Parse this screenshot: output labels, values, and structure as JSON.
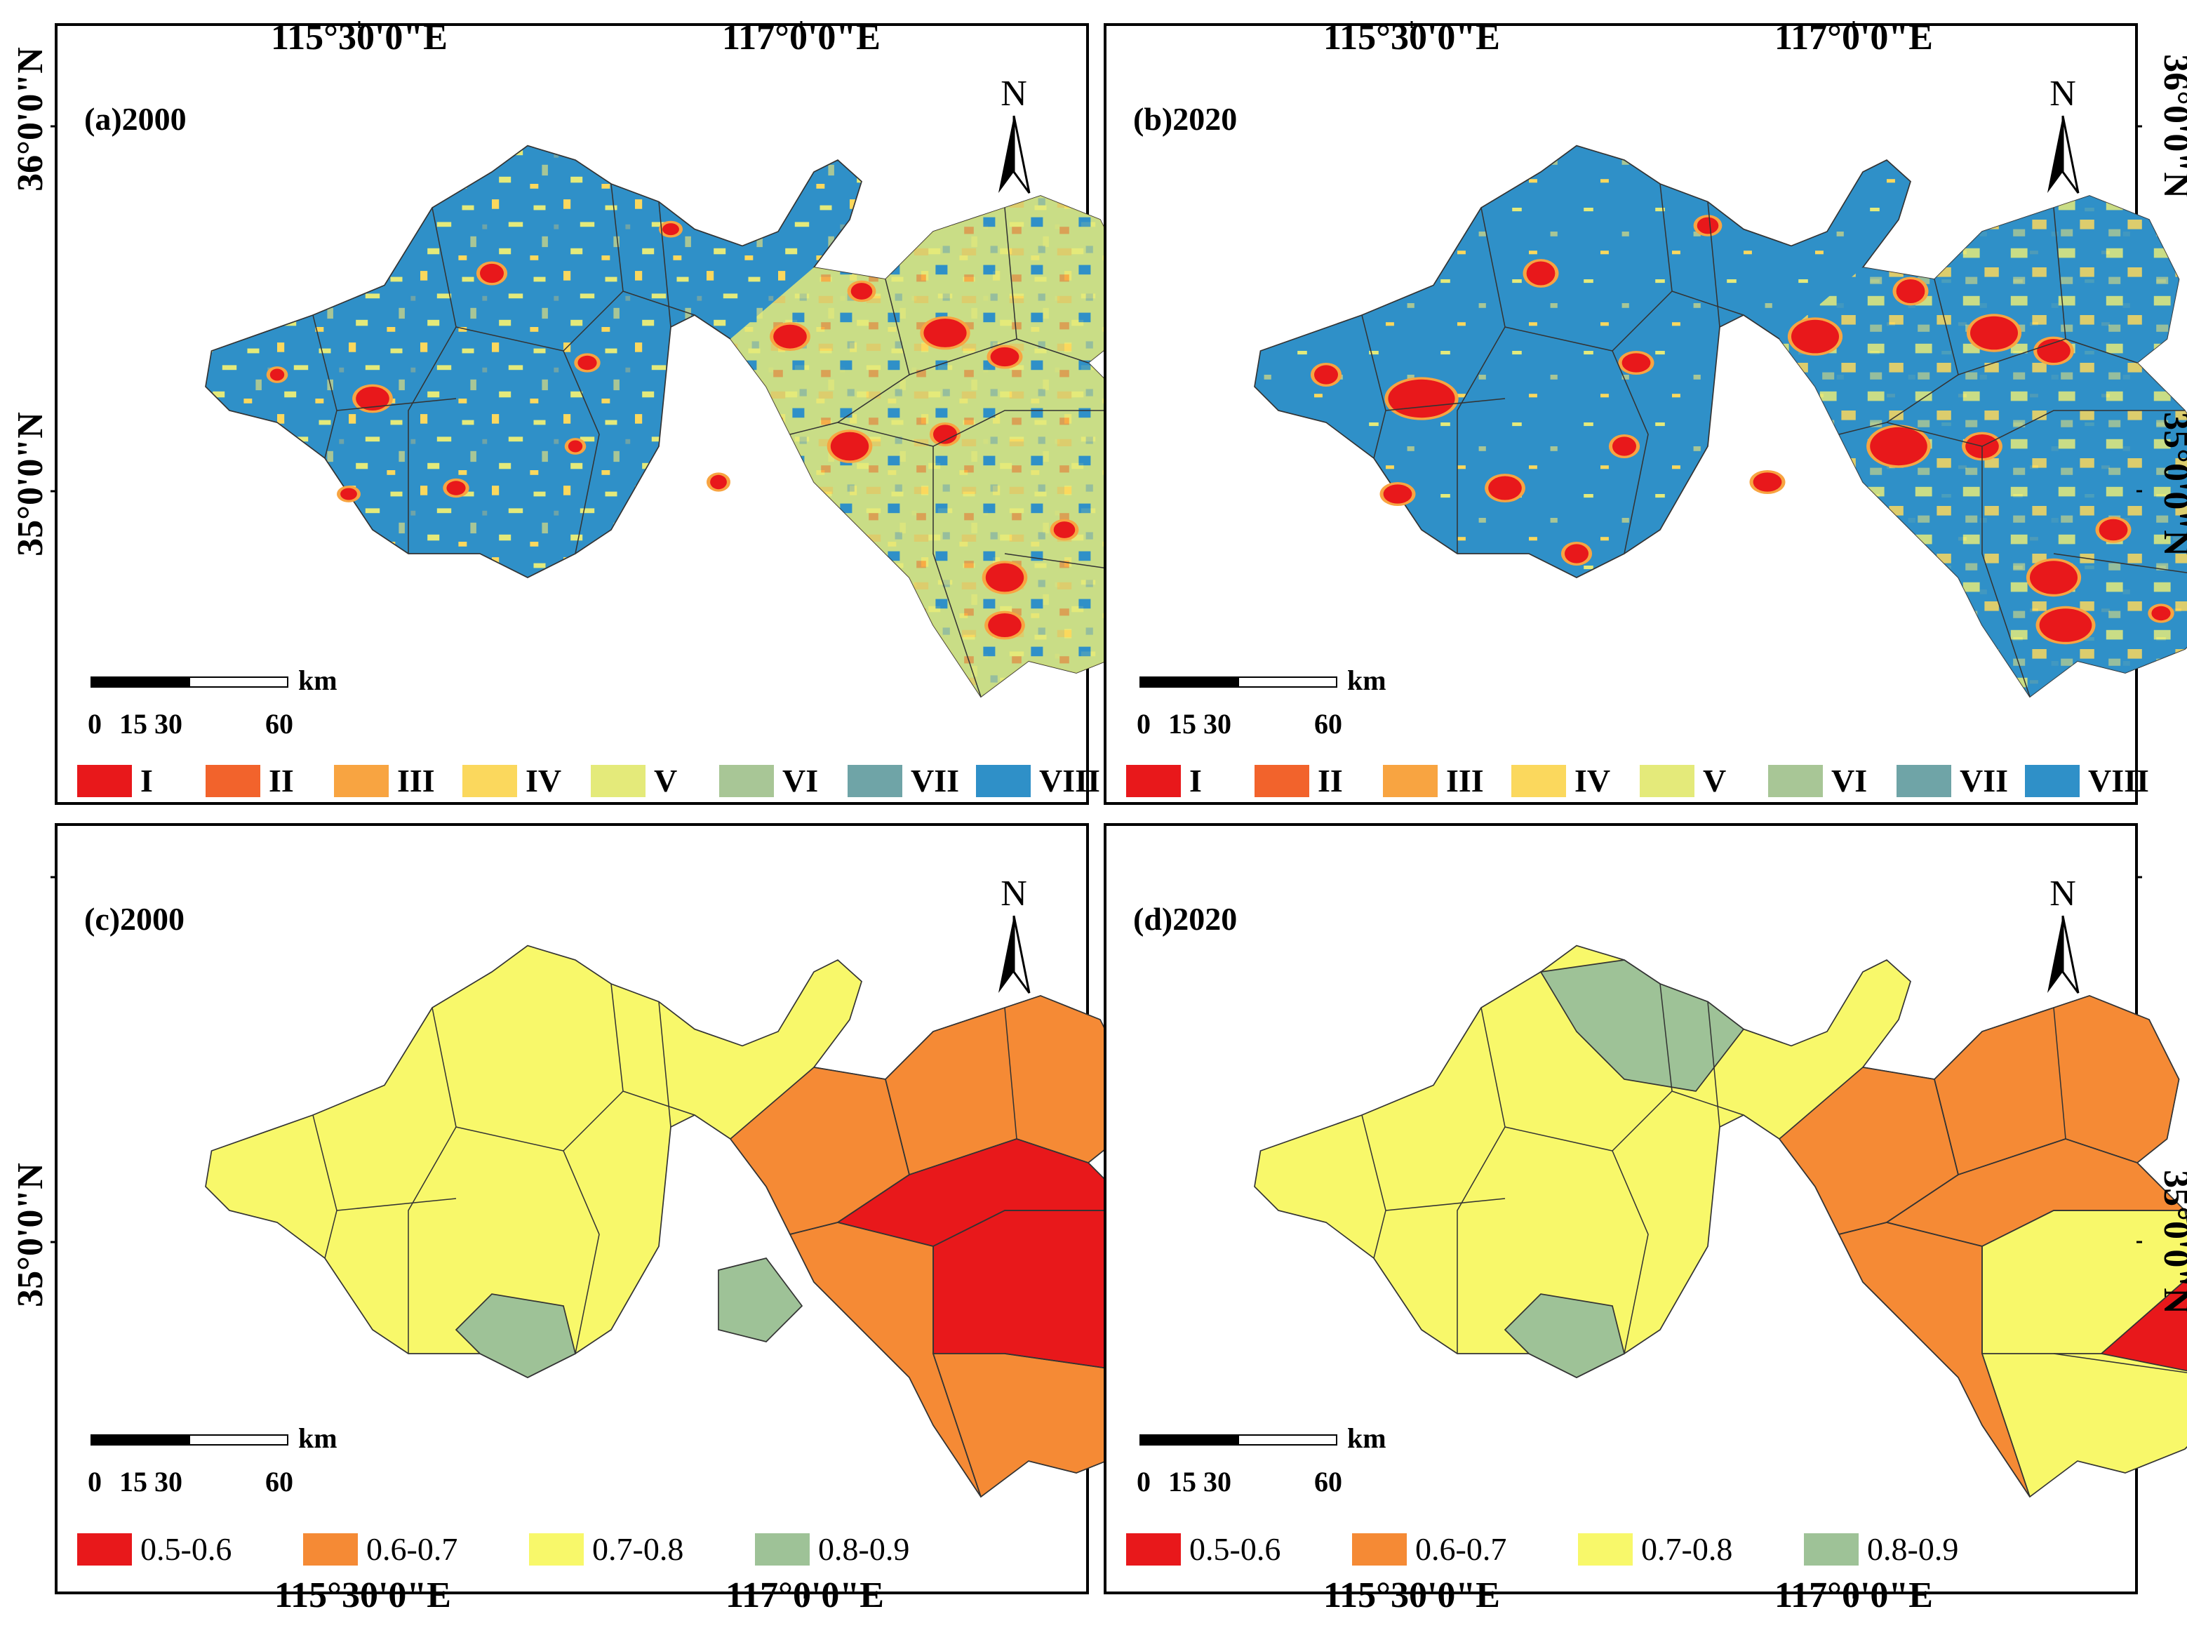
{
  "colors": {
    "I": "#e8181b",
    "II": "#f2632c",
    "III": "#f8a441",
    "IV": "#fbd85d",
    "V": "#e4ea7a",
    "VI": "#a8c696",
    "VII": "#6fa4a7",
    "VIII": "#2f90c8",
    "r56": "#e8181b",
    "r67": "#f58a35",
    "r78": "#f8f86a",
    "r89": "#9ec297",
    "frame": "#000000",
    "boundary": "#333333"
  },
  "axes": {
    "lon_top_left": "115°30'0\"E",
    "lon_top_right": "117°0'0\"E",
    "lat_a": "36°0'0\"N",
    "lat_b": "35°0'0\"N",
    "lat_c": "35°0'0\"N",
    "lat_d": "36°0'0\"N",
    "lat_e": "35°0'0\"N",
    "lat_f": "35°0'0\"N",
    "lat_g": "35°0'0\"N",
    "lon_bottom_left": "115°30'0\"E",
    "lon_bottom_right": "117°0'0\"E"
  },
  "panels": [
    {
      "id": "a",
      "title": "(a)2000",
      "north": "N",
      "scale_unit": "km",
      "scale_ticks": [
        "0",
        "15",
        "30",
        "60"
      ],
      "legend": [
        {
          "label": "I",
          "color": "#e8181b"
        },
        {
          "label": "II",
          "color": "#f2632c"
        },
        {
          "label": "III",
          "color": "#f8a441"
        },
        {
          "label": "IV",
          "color": "#fbd85d"
        },
        {
          "label": "V",
          "color": "#e4ea7a"
        },
        {
          "label": "VI",
          "color": "#a8c696"
        },
        {
          "label": "VII",
          "color": "#6fa4a7"
        },
        {
          "label": "VIII",
          "color": "#2f90c8"
        }
      ]
    },
    {
      "id": "b",
      "title": "(b)2020",
      "north": "N",
      "scale_unit": "km",
      "scale_ticks": [
        "0",
        "15",
        "30",
        "60"
      ],
      "legend": [
        {
          "label": "I",
          "color": "#e8181b"
        },
        {
          "label": "II",
          "color": "#f2632c"
        },
        {
          "label": "III",
          "color": "#f8a441"
        },
        {
          "label": "IV",
          "color": "#fbd85d"
        },
        {
          "label": "V",
          "color": "#e4ea7a"
        },
        {
          "label": "VI",
          "color": "#a8c696"
        },
        {
          "label": "VII",
          "color": "#6fa4a7"
        },
        {
          "label": "VIII",
          "color": "#2f90c8"
        }
      ]
    },
    {
      "id": "c",
      "title": "(c)2000",
      "north": "N",
      "scale_unit": "km",
      "scale_ticks": [
        "0",
        "15",
        "30",
        "60"
      ],
      "legend": [
        {
          "label": "0.5-0.6",
          "color": "#e8181b"
        },
        {
          "label": "0.6-0.7",
          "color": "#f58a35"
        },
        {
          "label": "0.7-0.8",
          "color": "#f8f86a"
        },
        {
          "label": "0.8-0.9",
          "color": "#9ec297"
        }
      ]
    },
    {
      "id": "d",
      "title": "(d)2020",
      "north": "N",
      "scale_unit": "km",
      "scale_ticks": [
        "0",
        "15",
        "30",
        "60"
      ],
      "legend": [
        {
          "label": "0.5-0.6",
          "color": "#e8181b"
        },
        {
          "label": "0.6-0.7",
          "color": "#f58a35"
        },
        {
          "label": "0.7-0.8",
          "color": "#f8f86a"
        },
        {
          "label": "0.8-0.9",
          "color": "#9ec297"
        }
      ]
    }
  ]
}
